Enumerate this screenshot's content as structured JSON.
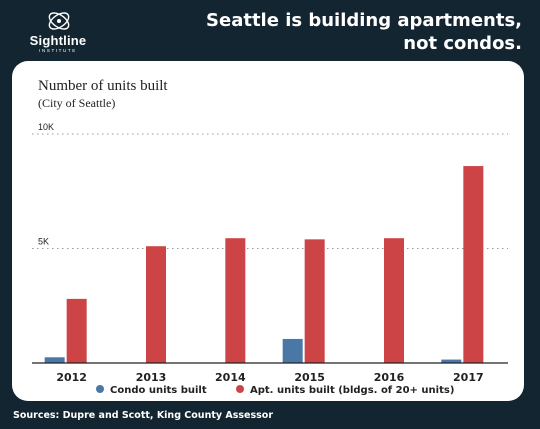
{
  "brand": {
    "name": "Sightline",
    "sub": "INSTITUTE",
    "logo_icon": "sightline-swirl-icon",
    "text_color": "#ffffff"
  },
  "headline": {
    "line1": "Seattle is building apartments,",
    "line2": "not condos."
  },
  "footer": {
    "source": "Sources: Dupre and Scott, King County Assessor"
  },
  "colors": {
    "background": "#132531",
    "panel": "#ffffff",
    "condo": "#4a78a6",
    "apartment": "#cc4446"
  },
  "chart_data": {
    "type": "bar",
    "title": "Number of units built",
    "subtitle": "(City of Seattle)",
    "categories": [
      "2012",
      "2013",
      "2014",
      "2015",
      "2016",
      "2017"
    ],
    "series": [
      {
        "name": "Condo units built",
        "color": "#4a78a6",
        "values": [
          250,
          0,
          0,
          1050,
          0,
          150
        ]
      },
      {
        "name": "Apt. units built (bldgs. of 20+ units)",
        "color": "#cc4446",
        "values": [
          2800,
          5100,
          5450,
          5400,
          5450,
          8600
        ]
      }
    ],
    "ylim": [
      0,
      10000
    ],
    "yticks": [
      {
        "value": 5000,
        "label": "5K"
      },
      {
        "value": 10000,
        "label": "10K"
      }
    ],
    "grid": true,
    "legend": "bottom"
  }
}
